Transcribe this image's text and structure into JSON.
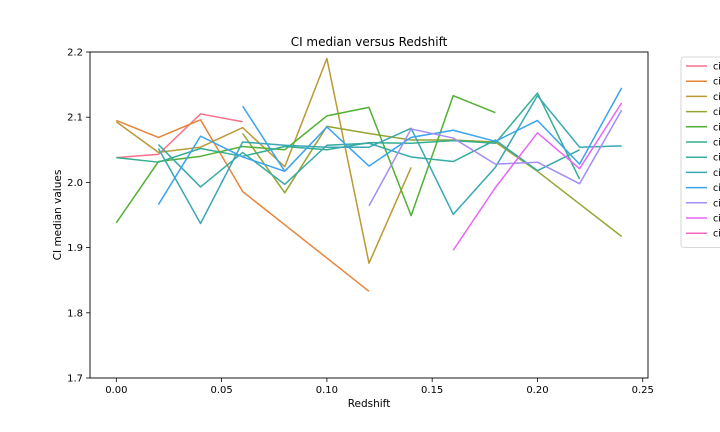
{
  "chart_data": {
    "type": "line",
    "title": "CI median versus Redshift",
    "xlabel": "Redshift",
    "ylabel": "CI median values",
    "xlim": [
      -0.0125,
      0.2525
    ],
    "ylim": [
      1.7,
      2.2
    ],
    "xticks": [
      0.0,
      0.05,
      0.1,
      0.15,
      0.2,
      0.25
    ],
    "xtick_labels": [
      "0.00",
      "0.05",
      "0.10",
      "0.15",
      "0.20",
      "0.25"
    ],
    "yticks": [
      1.7,
      1.8,
      1.9,
      2.0,
      2.1,
      2.2
    ],
    "ytick_labels": [
      "1.7",
      "1.8",
      "1.9",
      "2.0",
      "2.1",
      "2.2"
    ],
    "grid": false,
    "legend_position": "outside-right",
    "series": [
      {
        "name": "ci",
        "color": "#f77189",
        "x": [
          0.0,
          0.02,
          0.04,
          0.06
        ],
        "y": [
          2.038,
          2.043,
          2.105,
          2.093
        ]
      },
      {
        "name": "ci",
        "color": "#e5853a",
        "x": [
          0.0,
          0.02,
          0.04,
          0.06,
          0.08,
          0.1,
          0.12
        ],
        "y": [
          2.095,
          2.069,
          2.096,
          1.986,
          1.935,
          1.884,
          1.833
        ]
      },
      {
        "name": "ci",
        "color": "#bb9832",
        "x": [
          0.0,
          0.02,
          0.04,
          0.06,
          0.08,
          0.1,
          0.12,
          0.14
        ],
        "y": [
          2.093,
          2.046,
          2.054,
          2.084,
          2.024,
          2.19,
          1.876,
          2.023
        ]
      },
      {
        "name": "ci",
        "color": "#97a431",
        "x": [
          0.06,
          0.08,
          0.1,
          0.12,
          0.14,
          0.16,
          0.18,
          0.2,
          0.22,
          0.24
        ],
        "y": [
          2.075,
          1.984,
          2.086,
          2.075,
          2.065,
          2.065,
          2.062,
          2.017,
          1.967,
          1.917
        ]
      },
      {
        "name": "ci",
        "color": "#50b131",
        "x": [
          0.0,
          0.02,
          0.04,
          0.06,
          0.08,
          0.1,
          0.12,
          0.14,
          0.16,
          0.18
        ],
        "y": [
          1.938,
          2.032,
          2.04,
          2.055,
          2.05,
          2.102,
          2.115,
          1.949,
          2.133,
          2.107
        ]
      },
      {
        "name": "ci",
        "color": "#34ae91",
        "x": [
          0.0,
          0.02,
          0.04,
          0.06,
          0.08,
          0.1,
          0.12,
          0.14,
          0.16,
          0.18,
          0.2,
          0.22
        ],
        "y": [
          2.038,
          2.031,
          2.052,
          2.04,
          2.055,
          2.05,
          2.061,
          2.06,
          2.064,
          2.06,
          2.137,
          2.005
        ]
      },
      {
        "name": "ci",
        "color": "#37aba4",
        "x": [
          0.02,
          0.04,
          0.06,
          0.08,
          0.1,
          0.12,
          0.14,
          0.16,
          0.18,
          0.2,
          0.22
        ],
        "y": [
          2.058,
          1.993,
          2.046,
          1.997,
          2.057,
          2.06,
          2.039,
          2.032,
          2.065,
          2.018,
          2.05
        ]
      },
      {
        "name": "ci",
        "color": "#39a7b4",
        "x": [
          0.02,
          0.04,
          0.06,
          0.08,
          0.1,
          0.12,
          0.14,
          0.16,
          0.18,
          0.2,
          0.22,
          0.24
        ],
        "y": [
          2.052,
          1.937,
          2.062,
          2.057,
          2.054,
          2.054,
          2.083,
          1.951,
          2.023,
          2.133,
          2.054,
          2.056
        ]
      },
      {
        "name": "ci",
        "color": "#3ba3ec",
        "x": [
          0.02,
          0.04,
          0.06,
          0.08,
          0.1,
          0.12,
          0.14,
          0.16,
          0.18,
          0.2,
          0.22,
          0.24
        ],
        "y": [
          1.966,
          2.071,
          2.039,
          2.017,
          2.085,
          2.025,
          2.069,
          2.08,
          2.063,
          2.095,
          2.028,
          2.145
        ]
      },
      {
        "name": "ci",
        "color": "#3ba3ec",
        "x": [
          0.06,
          0.08
        ],
        "y": [
          2.117,
          2.017
        ]
      },
      {
        "name": "ci",
        "color": "#a48cf4",
        "x": [
          0.12,
          0.14,
          0.16,
          0.18,
          0.2,
          0.22,
          0.24
        ],
        "y": [
          1.964,
          2.082,
          2.068,
          2.028,
          2.031,
          1.998,
          2.111
        ]
      },
      {
        "name": "ci",
        "color": "#e866f4",
        "x": [
          0.16,
          0.18,
          0.2,
          0.22,
          0.24
        ],
        "y": [
          1.896,
          1.992,
          2.076,
          2.021,
          2.122
        ]
      },
      {
        "name": "ci",
        "color": "#f668c2",
        "x": [],
        "y": []
      }
    ],
    "legend": [
      {
        "label": "ci",
        "color": "#f77189"
      },
      {
        "label": "ci",
        "color": "#e5853a"
      },
      {
        "label": "ci",
        "color": "#bb9832"
      },
      {
        "label": "ci",
        "color": "#97a431"
      },
      {
        "label": "ci",
        "color": "#50b131"
      },
      {
        "label": "ci",
        "color": "#34ae91"
      },
      {
        "label": "ci",
        "color": "#37aba4"
      },
      {
        "label": "ci",
        "color": "#39a7b4"
      },
      {
        "label": "ci",
        "color": "#3ba3ec"
      },
      {
        "label": "ci",
        "color": "#a48cf4"
      },
      {
        "label": "ci",
        "color": "#e866f4"
      },
      {
        "label": "ci",
        "color": "#f668c2"
      }
    ]
  }
}
